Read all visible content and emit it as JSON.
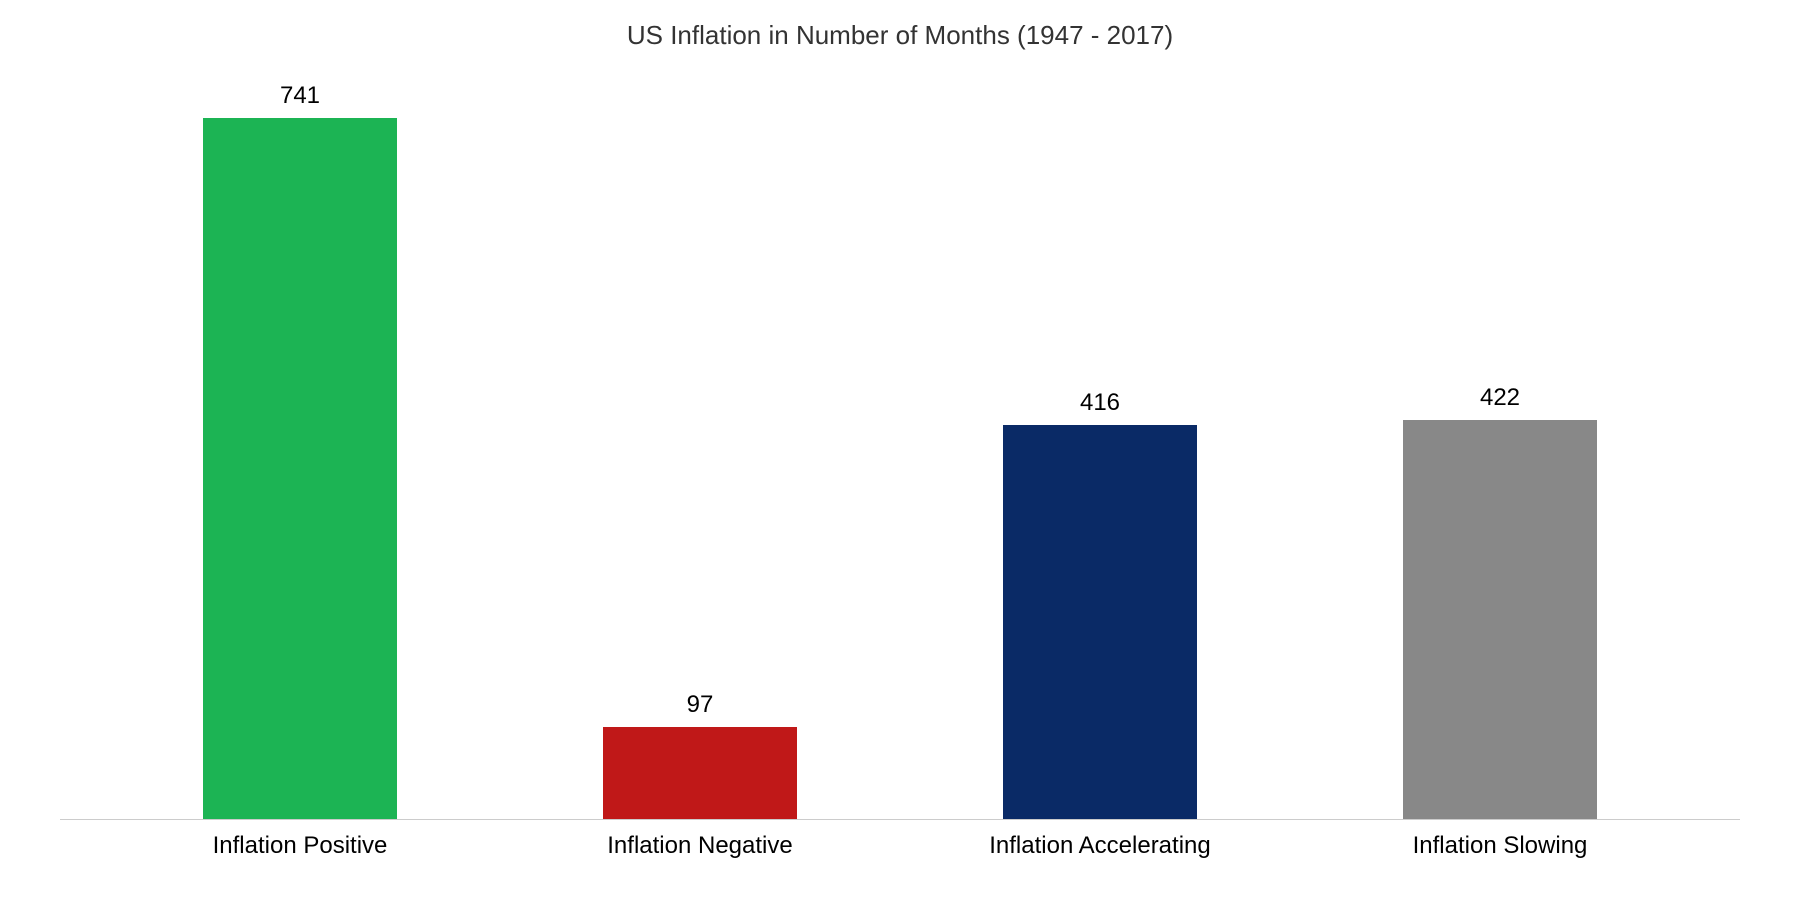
{
  "chart": {
    "type": "bar",
    "title": "US Inflation in Number of Months (1947 - 2017)",
    "title_fontsize": 26,
    "title_color": "#333333",
    "background_color": "#ffffff",
    "axis_line_color": "#cccccc",
    "label_fontsize": 24,
    "label_color": "#000000",
    "value_fontsize": 24,
    "value_color": "#000000",
    "ylim_max": 780,
    "bar_width_pct": 55,
    "bars": [
      {
        "category": "Inflation Positive",
        "value": 741,
        "color": "#1cb454"
      },
      {
        "category": "Inflation Negative",
        "value": 97,
        "color": "#c01818"
      },
      {
        "category": "Inflation Accelerating",
        "value": 416,
        "color": "#0a2a66"
      },
      {
        "category": "Inflation Slowing",
        "value": 422,
        "color": "#888888"
      }
    ]
  }
}
